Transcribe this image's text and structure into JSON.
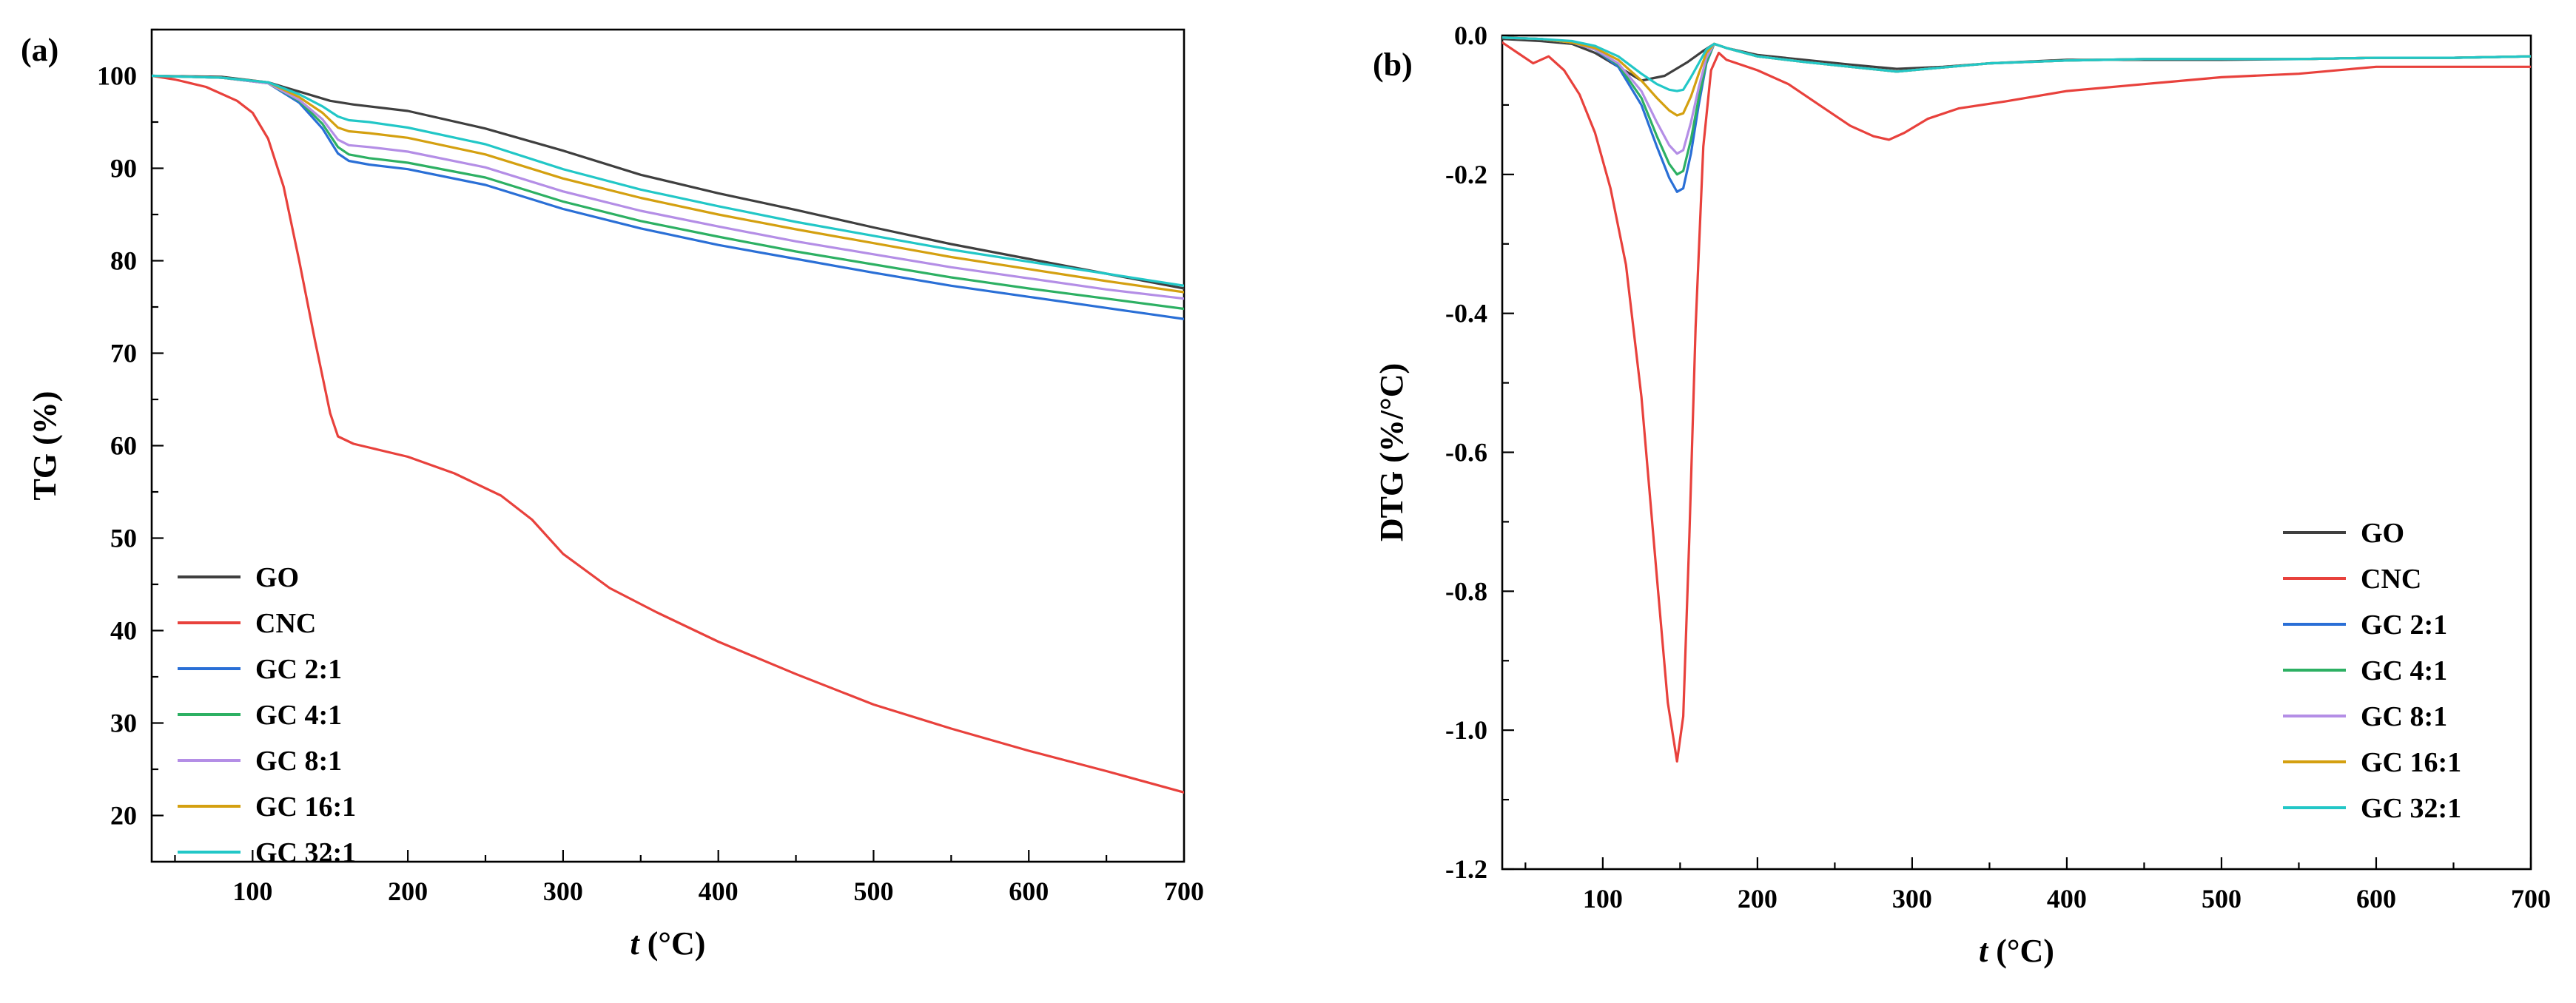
{
  "chart_data": [
    {
      "panel": "(a)",
      "type": "line",
      "title": "",
      "xlabel_italic": "t",
      "xlabel_unit": " (°C)",
      "ylabel": "TG (%)",
      "xlim": [
        35,
        700
      ],
      "ylim": [
        15,
        105
      ],
      "xticks": [
        100,
        200,
        300,
        400,
        500,
        600,
        700
      ],
      "yticks": [
        20,
        30,
        40,
        50,
        60,
        70,
        80,
        90,
        100
      ],
      "legend_position": "bottom-left",
      "series": [
        {
          "name": "GO",
          "color": "#3f3f3f",
          "x": [
            35,
            80,
            110,
            130,
            150,
            165,
            200,
            250,
            300,
            350,
            400,
            450,
            500,
            550,
            600,
            650,
            700
          ],
          "y": [
            100,
            99.9,
            99.3,
            98.3,
            97.3,
            96.9,
            96.2,
            94.3,
            91.9,
            89.3,
            87.3,
            85.5,
            83.6,
            81.8,
            80.2,
            78.6,
            77.0
          ]
        },
        {
          "name": "CNC",
          "color": "#e8413c",
          "x": [
            35,
            50,
            70,
            90,
            100,
            110,
            120,
            130,
            140,
            150,
            155,
            160,
            165,
            175,
            200,
            230,
            260,
            280,
            300,
            330,
            360,
            400,
            450,
            500,
            550,
            600,
            650,
            700
          ],
          "y": [
            100,
            99.6,
            98.8,
            97.3,
            96.0,
            93.2,
            88.0,
            80.0,
            71.5,
            63.5,
            61.0,
            60.6,
            60.2,
            59.8,
            58.8,
            57.0,
            54.6,
            52.0,
            48.3,
            44.6,
            42.0,
            38.8,
            35.3,
            32.0,
            29.4,
            27.0,
            24.8,
            22.5
          ]
        },
        {
          "name": "GC 2:1",
          "color": "#2a6fd6",
          "x": [
            35,
            80,
            110,
            130,
            145,
            155,
            162,
            175,
            200,
            250,
            300,
            350,
            400,
            450,
            500,
            550,
            600,
            650,
            700
          ],
          "y": [
            100,
            99.8,
            99.2,
            97.1,
            94.3,
            91.6,
            90.8,
            90.4,
            89.9,
            88.2,
            85.6,
            83.5,
            81.7,
            80.2,
            78.7,
            77.3,
            76.1,
            74.9,
            73.7
          ]
        },
        {
          "name": "GC 4:1",
          "color": "#2db063",
          "x": [
            35,
            80,
            110,
            130,
            145,
            155,
            162,
            175,
            200,
            250,
            300,
            350,
            400,
            450,
            500,
            550,
            600,
            650,
            700
          ],
          "y": [
            100,
            99.8,
            99.2,
            97.3,
            94.8,
            92.3,
            91.5,
            91.1,
            90.6,
            89.0,
            86.4,
            84.3,
            82.6,
            81.0,
            79.6,
            78.2,
            77.0,
            75.9,
            74.8
          ]
        },
        {
          "name": "GC 8:1",
          "color": "#b48ee6",
          "x": [
            35,
            80,
            110,
            130,
            145,
            155,
            162,
            175,
            200,
            250,
            300,
            350,
            400,
            450,
            500,
            550,
            600,
            650,
            700
          ],
          "y": [
            100,
            99.8,
            99.2,
            97.4,
            95.3,
            93.1,
            92.5,
            92.3,
            91.8,
            90.1,
            87.5,
            85.4,
            83.7,
            82.1,
            80.7,
            79.3,
            78.1,
            76.9,
            75.9
          ]
        },
        {
          "name": "GC 16:1",
          "color": "#d4a010",
          "x": [
            35,
            80,
            110,
            130,
            145,
            155,
            162,
            175,
            200,
            250,
            300,
            350,
            400,
            450,
            500,
            550,
            600,
            650,
            700
          ],
          "y": [
            100,
            99.8,
            99.3,
            97.7,
            96.0,
            94.4,
            94.0,
            93.8,
            93.3,
            91.5,
            88.9,
            86.8,
            85.0,
            83.4,
            81.9,
            80.4,
            79.1,
            77.8,
            76.6
          ]
        },
        {
          "name": "GC 32:1",
          "color": "#22c7c7",
          "x": [
            35,
            80,
            110,
            130,
            145,
            155,
            162,
            175,
            200,
            250,
            300,
            350,
            400,
            450,
            500,
            550,
            600,
            650,
            700
          ],
          "y": [
            100,
            99.8,
            99.3,
            98.0,
            96.7,
            95.6,
            95.2,
            95.0,
            94.4,
            92.6,
            89.9,
            87.7,
            85.9,
            84.2,
            82.7,
            81.2,
            79.9,
            78.6,
            77.3
          ]
        }
      ]
    },
    {
      "panel": "(b)",
      "type": "line",
      "title": "",
      "xlabel_italic": "t",
      "xlabel_unit": " (°C)",
      "ylabel": "DTG (%/°C)",
      "xlim": [
        35,
        700
      ],
      "ylim": [
        -1.2,
        0.0
      ],
      "xticks": [
        100,
        200,
        300,
        400,
        500,
        600,
        700
      ],
      "yticks": [
        0.0,
        -0.2,
        -0.4,
        -0.6,
        -0.8,
        -1.0,
        -1.2
      ],
      "ytick_labels": [
        "0.0",
        "-0.2",
        "-0.4",
        "-0.6",
        "-0.8",
        "-1.0",
        "-1.2"
      ],
      "legend_position": "bottom-right",
      "series": [
        {
          "name": "GO",
          "color": "#3f3f3f",
          "x": [
            35,
            60,
            80,
            95,
            110,
            125,
            140,
            155,
            165,
            172,
            180,
            200,
            230,
            260,
            290,
            320,
            350,
            400,
            450,
            500,
            550,
            600,
            650,
            700
          ],
          "y": [
            -0.005,
            -0.008,
            -0.012,
            -0.025,
            -0.045,
            -0.065,
            -0.058,
            -0.038,
            -0.022,
            -0.012,
            -0.018,
            -0.028,
            -0.035,
            -0.042,
            -0.048,
            -0.045,
            -0.04,
            -0.035,
            -0.035,
            -0.035,
            -0.034,
            -0.032,
            -0.032,
            -0.03
          ]
        },
        {
          "name": "CNC",
          "color": "#e8413c",
          "x": [
            35,
            45,
            55,
            65,
            75,
            85,
            95,
            105,
            115,
            125,
            135,
            142,
            148,
            152,
            156,
            160,
            165,
            170,
            175,
            180,
            200,
            220,
            240,
            260,
            275,
            285,
            295,
            310,
            330,
            360,
            400,
            450,
            500,
            550,
            600,
            650,
            700
          ],
          "y": [
            -0.01,
            -0.025,
            -0.04,
            -0.03,
            -0.05,
            -0.085,
            -0.14,
            -0.22,
            -0.33,
            -0.52,
            -0.78,
            -0.96,
            -1.045,
            -0.98,
            -0.72,
            -0.42,
            -0.16,
            -0.05,
            -0.025,
            -0.035,
            -0.05,
            -0.07,
            -0.1,
            -0.13,
            -0.145,
            -0.15,
            -0.14,
            -0.12,
            -0.105,
            -0.095,
            -0.08,
            -0.07,
            -0.06,
            -0.055,
            -0.045,
            -0.045,
            -0.045
          ]
        },
        {
          "name": "GC 2:1",
          "color": "#2a6fd6",
          "x": [
            35,
            60,
            80,
            95,
            110,
            125,
            135,
            143,
            148,
            152,
            157,
            162,
            167,
            172,
            180,
            200,
            230,
            260,
            290,
            320,
            350,
            400,
            450,
            500,
            550,
            600,
            650,
            700
          ],
          "y": [
            -0.003,
            -0.005,
            -0.01,
            -0.02,
            -0.045,
            -0.1,
            -0.16,
            -0.205,
            -0.225,
            -0.22,
            -0.17,
            -0.1,
            -0.04,
            -0.012,
            -0.018,
            -0.03,
            -0.038,
            -0.045,
            -0.052,
            -0.046,
            -0.04,
            -0.036,
            -0.034,
            -0.034,
            -0.034,
            -0.032,
            -0.032,
            -0.03
          ]
        },
        {
          "name": "GC 4:1",
          "color": "#2db063",
          "x": [
            35,
            60,
            80,
            95,
            110,
            125,
            135,
            143,
            148,
            152,
            157,
            162,
            167,
            172,
            180,
            200,
            230,
            260,
            290,
            320,
            350,
            400,
            450,
            500,
            550,
            600,
            650,
            700
          ],
          "y": [
            -0.003,
            -0.005,
            -0.01,
            -0.02,
            -0.042,
            -0.09,
            -0.145,
            -0.185,
            -0.2,
            -0.195,
            -0.15,
            -0.09,
            -0.038,
            -0.012,
            -0.018,
            -0.03,
            -0.038,
            -0.045,
            -0.052,
            -0.046,
            -0.04,
            -0.036,
            -0.034,
            -0.034,
            -0.034,
            -0.032,
            -0.032,
            -0.03
          ]
        },
        {
          "name": "GC 8:1",
          "color": "#b48ee6",
          "x": [
            35,
            60,
            80,
            95,
            110,
            125,
            135,
            143,
            148,
            152,
            157,
            162,
            167,
            172,
            180,
            200,
            230,
            260,
            290,
            320,
            350,
            400,
            450,
            500,
            550,
            600,
            650,
            700
          ],
          "y": [
            -0.003,
            -0.005,
            -0.01,
            -0.02,
            -0.04,
            -0.08,
            -0.125,
            -0.158,
            -0.17,
            -0.165,
            -0.125,
            -0.075,
            -0.032,
            -0.012,
            -0.018,
            -0.03,
            -0.038,
            -0.045,
            -0.052,
            -0.046,
            -0.04,
            -0.036,
            -0.034,
            -0.034,
            -0.034,
            -0.032,
            -0.032,
            -0.03
          ]
        },
        {
          "name": "GC 16:1",
          "color": "#d4a010",
          "x": [
            35,
            60,
            80,
            95,
            110,
            125,
            135,
            143,
            148,
            152,
            157,
            162,
            167,
            172,
            180,
            200,
            230,
            260,
            290,
            320,
            350,
            400,
            450,
            500,
            550,
            600,
            650,
            700
          ],
          "y": [
            -0.003,
            -0.005,
            -0.01,
            -0.018,
            -0.035,
            -0.065,
            -0.09,
            -0.108,
            -0.115,
            -0.112,
            -0.088,
            -0.055,
            -0.025,
            -0.012,
            -0.018,
            -0.03,
            -0.038,
            -0.045,
            -0.052,
            -0.046,
            -0.04,
            -0.036,
            -0.034,
            -0.034,
            -0.034,
            -0.032,
            -0.032,
            -0.03
          ]
        },
        {
          "name": "GC 32:1",
          "color": "#22c7c7",
          "x": [
            35,
            60,
            80,
            95,
            110,
            125,
            135,
            143,
            148,
            152,
            157,
            162,
            167,
            172,
            180,
            200,
            230,
            260,
            290,
            320,
            350,
            400,
            450,
            500,
            550,
            600,
            650,
            700
          ],
          "y": [
            -0.003,
            -0.005,
            -0.008,
            -0.015,
            -0.03,
            -0.055,
            -0.07,
            -0.078,
            -0.08,
            -0.078,
            -0.06,
            -0.04,
            -0.02,
            -0.012,
            -0.018,
            -0.03,
            -0.038,
            -0.045,
            -0.052,
            -0.046,
            -0.04,
            -0.036,
            -0.034,
            -0.034,
            -0.034,
            -0.032,
            -0.032,
            -0.03
          ]
        }
      ]
    }
  ]
}
